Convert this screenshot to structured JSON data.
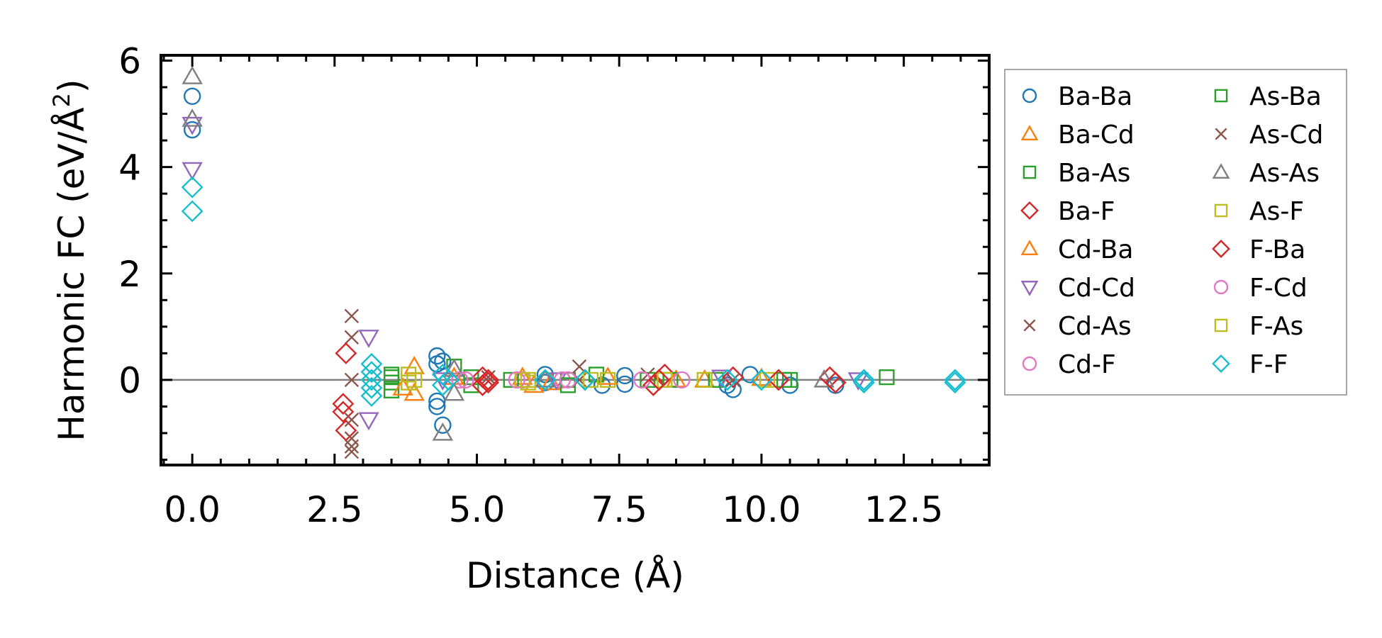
{
  "chart_data": {
    "type": "scatter",
    "title": "",
    "xlabel": "Distance (Å)",
    "ylabel_main": "Harmonic FC (eV/Å",
    "ylabel_sup": "2",
    "ylabel_close": ")",
    "xlim": [
      -0.55,
      14.0
    ],
    "ylim": [
      -1.6,
      6.1
    ],
    "xticks": [
      0.0,
      2.5,
      5.0,
      7.5,
      10.0,
      12.5
    ],
    "xtick_labels": [
      "0.0",
      "2.5",
      "5.0",
      "7.5",
      "10.0",
      "12.5"
    ],
    "yticks": [
      0,
      2,
      4,
      6
    ],
    "ytick_labels": [
      "0",
      "2",
      "4",
      "6"
    ],
    "zero_line": true,
    "legend_position": "outside-right",
    "series": [
      {
        "name": "Ba-Ba",
        "marker": "circle",
        "color": "#1f77b4",
        "points": [
          [
            0,
            5.33
          ],
          [
            0,
            4.7
          ],
          [
            4.3,
            0.45
          ],
          [
            4.3,
            0.3
          ],
          [
            4.3,
            -0.4
          ],
          [
            4.3,
            -0.5
          ],
          [
            4.4,
            -0.85
          ],
          [
            4.4,
            0.35
          ],
          [
            6.2,
            0.1
          ],
          [
            6.2,
            -0.05
          ],
          [
            7.2,
            -0.1
          ],
          [
            7.6,
            0.08
          ],
          [
            7.6,
            -0.08
          ],
          [
            9.4,
            -0.1
          ],
          [
            9.5,
            -0.18
          ],
          [
            9.8,
            0.1
          ],
          [
            10.5,
            -0.1
          ],
          [
            11.3,
            -0.1
          ]
        ]
      },
      {
        "name": "Ba-Cd",
        "marker": "triangle-up",
        "color": "#ff7f0e",
        "points": [
          [
            3.9,
            0.25
          ],
          [
            3.9,
            -0.25
          ],
          [
            5.8,
            0.05
          ],
          [
            6.3,
            -0.05
          ],
          [
            7.3,
            0.05
          ],
          [
            9.0,
            0.0
          ],
          [
            10.0,
            0.03
          ]
        ]
      },
      {
        "name": "Ba-As",
        "marker": "square",
        "color": "#2ca02c",
        "points": [
          [
            3.5,
            0.05
          ],
          [
            3.5,
            -0.05
          ],
          [
            3.5,
            -0.2
          ],
          [
            4.6,
            0.25
          ],
          [
            4.9,
            0.05
          ],
          [
            4.9,
            -0.1
          ],
          [
            6.6,
            0.0
          ],
          [
            7.1,
            0.1
          ],
          [
            8.0,
            0.0
          ],
          [
            9.2,
            0.0
          ],
          [
            10.5,
            0.0
          ]
        ]
      },
      {
        "name": "Ba-F",
        "marker": "diamond",
        "color": "#d62728",
        "points": [
          [
            2.65,
            -0.45
          ],
          [
            2.65,
            -0.6
          ],
          [
            2.7,
            -0.95
          ],
          [
            5.1,
            0.05
          ],
          [
            5.1,
            -0.1
          ],
          [
            8.1,
            -0.1
          ],
          [
            8.3,
            0.1
          ],
          [
            9.5,
            0.05
          ],
          [
            11.2,
            0.05
          ]
        ]
      },
      {
        "name": "Cd-Ba",
        "marker": "triangle-up",
        "color": "#ff7f0e",
        "points": [
          [
            3.7,
            -0.15
          ],
          [
            4.6,
            0.05
          ],
          [
            6.0,
            -0.1
          ],
          [
            8.5,
            0.0
          ]
        ]
      },
      {
        "name": "Cd-Cd",
        "marker": "triangle-down",
        "color": "#9467bd",
        "points": [
          [
            0,
            4.8
          ],
          [
            0,
            3.95
          ],
          [
            3.1,
            0.8
          ],
          [
            3.1,
            -0.75
          ],
          [
            4.4,
            0.0
          ],
          [
            6.4,
            0.0
          ],
          [
            9.3,
            0.05
          ],
          [
            11.7,
            0.0
          ]
        ]
      },
      {
        "name": "Cd-As",
        "marker": "x",
        "color": "#8c564b",
        "points": [
          [
            2.8,
            1.2
          ],
          [
            2.8,
            0.8
          ],
          [
            2.8,
            0.0
          ],
          [
            2.8,
            -0.75
          ],
          [
            2.8,
            -1.1
          ],
          [
            2.8,
            -1.25
          ],
          [
            2.8,
            -1.35
          ],
          [
            6.8,
            0.25
          ],
          [
            8.0,
            0.1
          ]
        ]
      },
      {
        "name": "Cd-F",
        "marker": "circle",
        "color": "#e377c2",
        "points": [
          [
            4.7,
            0.0
          ],
          [
            5.8,
            0.0
          ],
          [
            6.5,
            0.0
          ],
          [
            7.9,
            0.0
          ]
        ]
      },
      {
        "name": "As-Ba",
        "marker": "square",
        "color": "#2ca02c",
        "points": [
          [
            3.5,
            0.1
          ],
          [
            5.6,
            0.0
          ],
          [
            6.6,
            -0.1
          ],
          [
            8.4,
            0.0
          ],
          [
            10.4,
            0.0
          ],
          [
            12.2,
            0.05
          ]
        ]
      },
      {
        "name": "As-Cd",
        "marker": "x",
        "color": "#8c564b",
        "points": [
          [
            5.2,
            0.05
          ],
          [
            6.8,
            0.0
          ],
          [
            9.5,
            0.0
          ]
        ]
      },
      {
        "name": "As-As",
        "marker": "triangle-up",
        "color": "#7f7f7f",
        "points": [
          [
            0,
            5.7
          ],
          [
            0,
            4.9
          ],
          [
            4.4,
            -1.0
          ],
          [
            4.6,
            -0.25
          ],
          [
            4.6,
            0.2
          ],
          [
            6.2,
            0.0
          ],
          [
            11.1,
            0.0
          ]
        ]
      },
      {
        "name": "As-F",
        "marker": "square",
        "color": "#bcbd22",
        "points": [
          [
            3.8,
            0.1
          ],
          [
            3.8,
            -0.05
          ],
          [
            5.8,
            0.0
          ],
          [
            5.9,
            -0.05
          ],
          [
            7.0,
            0.0
          ],
          [
            8.3,
            0.0
          ],
          [
            10.1,
            0.0
          ]
        ]
      },
      {
        "name": "F-Ba",
        "marker": "diamond",
        "color": "#d62728",
        "points": [
          [
            2.7,
            0.5
          ],
          [
            5.2,
            0.0
          ],
          [
            5.2,
            -0.05
          ],
          [
            6.9,
            0.0
          ],
          [
            8.2,
            0.0
          ],
          [
            10.3,
            0.0
          ],
          [
            11.3,
            -0.05
          ]
        ]
      },
      {
        "name": "F-Cd",
        "marker": "circle",
        "color": "#e377c2",
        "points": [
          [
            4.8,
            0.0
          ],
          [
            5.7,
            0.0
          ],
          [
            6.6,
            0.0
          ],
          [
            8.6,
            0.0
          ]
        ]
      },
      {
        "name": "F-As",
        "marker": "square",
        "color": "#bcbd22",
        "points": [
          [
            3.9,
            0.0
          ],
          [
            5.9,
            0.0
          ],
          [
            7.3,
            0.0
          ],
          [
            9.0,
            0.0
          ]
        ]
      },
      {
        "name": "F-F",
        "marker": "diamond",
        "color": "#17becf",
        "points": [
          [
            0,
            3.62
          ],
          [
            0,
            3.17
          ],
          [
            3.15,
            0.3
          ],
          [
            3.15,
            0.15
          ],
          [
            3.15,
            0.0
          ],
          [
            3.15,
            -0.15
          ],
          [
            3.15,
            -0.3
          ],
          [
            4.4,
            0.1
          ],
          [
            4.4,
            -0.1
          ],
          [
            4.5,
            0.0
          ],
          [
            6.2,
            0.0
          ],
          [
            6.9,
            0.0
          ],
          [
            9.4,
            0.0
          ],
          [
            10.0,
            0.0
          ],
          [
            11.8,
            0.0
          ],
          [
            11.8,
            -0.05
          ],
          [
            13.4,
            0.0
          ],
          [
            13.4,
            -0.05
          ]
        ]
      }
    ]
  }
}
